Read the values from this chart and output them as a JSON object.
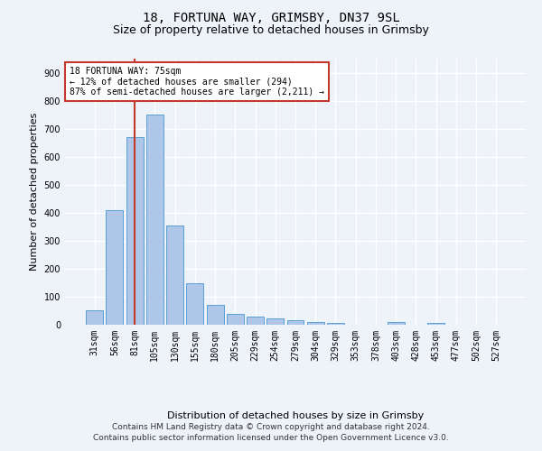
{
  "title1": "18, FORTUNA WAY, GRIMSBY, DN37 9SL",
  "title2": "Size of property relative to detached houses in Grimsby",
  "xlabel": "Distribution of detached houses by size in Grimsby",
  "ylabel": "Number of detached properties",
  "categories": [
    "31sqm",
    "56sqm",
    "81sqm",
    "105sqm",
    "130sqm",
    "155sqm",
    "180sqm",
    "205sqm",
    "229sqm",
    "254sqm",
    "279sqm",
    "304sqm",
    "329sqm",
    "353sqm",
    "378sqm",
    "403sqm",
    "428sqm",
    "453sqm",
    "477sqm",
    "502sqm",
    "527sqm"
  ],
  "values": [
    50,
    410,
    670,
    750,
    355,
    148,
    70,
    38,
    30,
    22,
    15,
    10,
    8,
    0,
    0,
    10,
    0,
    8,
    0,
    0,
    0
  ],
  "bar_color": "#aec6e8",
  "bar_edge_color": "#5a9fd4",
  "vline_index": 2,
  "vline_color": "#c0392b",
  "annotation_text": "18 FORTUNA WAY: 75sqm\n← 12% of detached houses are smaller (294)\n87% of semi-detached houses are larger (2,211) →",
  "annotation_box_color": "white",
  "annotation_box_edge": "#c0392b",
  "ylim": [
    0,
    950
  ],
  "yticks": [
    0,
    100,
    200,
    300,
    400,
    500,
    600,
    700,
    800,
    900
  ],
  "footer": "Contains HM Land Registry data © Crown copyright and database right 2024.\nContains public sector information licensed under the Open Government Licence v3.0.",
  "bg_color": "#eef2f9",
  "plot_bg_color": "#eef2f9",
  "grid_color": "white",
  "title_fontsize": 10,
  "subtitle_fontsize": 9,
  "tick_fontsize": 7,
  "ylabel_fontsize": 8,
  "xlabel_fontsize": 8,
  "footer_fontsize": 6.5,
  "annot_fontsize": 7
}
